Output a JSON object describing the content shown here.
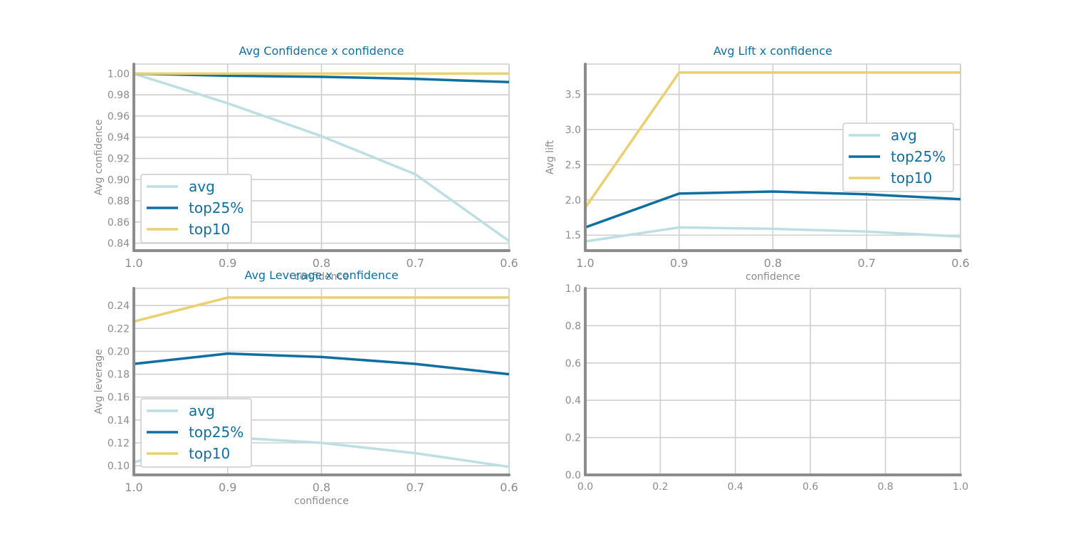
{
  "chart_data": [
    {
      "type": "line",
      "title": "Avg Confidence x confidence",
      "xlabel": "confidence",
      "ylabel": "Avg confidence",
      "x": [
        1.0,
        0.9,
        0.8,
        0.7,
        0.6
      ],
      "x_tick_labels": [
        "1.0",
        "0.9",
        "0.8",
        "0.7",
        "0.6"
      ],
      "xlim": [
        1.0,
        0.6
      ],
      "ylim": [
        0.833,
        1.009
      ],
      "y_ticks": [
        0.84,
        0.86,
        0.88,
        0.9,
        0.92,
        0.94,
        0.96,
        0.98,
        1.0
      ],
      "y_tick_labels": [
        "0.84",
        "0.86",
        "0.88",
        "0.90",
        "0.92",
        "0.94",
        "0.96",
        "0.98",
        "1.00"
      ],
      "grid": true,
      "legend_position": "lower-left",
      "series": [
        {
          "name": "avg",
          "color": "#bcdfe4",
          "values": [
            1.0,
            0.972,
            0.941,
            0.905,
            0.842
          ]
        },
        {
          "name": "top25%",
          "color": "#0e6fa0",
          "values": [
            1.0,
            0.998,
            0.997,
            0.995,
            0.992
          ]
        },
        {
          "name": "top10",
          "color": "#ead070",
          "values": [
            1.0,
            1.0,
            1.0,
            1.0,
            1.0
          ]
        }
      ]
    },
    {
      "type": "line",
      "title": "Avg Lift x confidence",
      "xlabel": "confidence",
      "ylabel": "Avg lift",
      "x": [
        1.0,
        0.9,
        0.8,
        0.7,
        0.6
      ],
      "x_tick_labels": [
        "1.0",
        "0.9",
        "0.8",
        "0.7",
        "0.6"
      ],
      "xlim": [
        1.0,
        0.6
      ],
      "ylim": [
        1.28,
        3.93
      ],
      "y_ticks": [
        1.5,
        2.0,
        2.5,
        3.0,
        3.5
      ],
      "y_tick_labels": [
        "1.5",
        "2.0",
        "2.5",
        "3.0",
        "3.5"
      ],
      "grid": true,
      "legend_position": "center-right",
      "series": [
        {
          "name": "avg",
          "color": "#bcdfe4",
          "values": [
            1.41,
            1.61,
            1.59,
            1.55,
            1.48
          ]
        },
        {
          "name": "top25%",
          "color": "#0e6fa0",
          "values": [
            1.61,
            2.09,
            2.12,
            2.08,
            2.01
          ]
        },
        {
          "name": "top10",
          "color": "#ead070",
          "values": [
            1.89,
            3.81,
            3.81,
            3.81,
            3.81
          ]
        }
      ]
    },
    {
      "type": "line",
      "title": "Avg Leverage x confidence",
      "xlabel": "confidence",
      "ylabel": "Avg leverage",
      "x": [
        1.0,
        0.9,
        0.8,
        0.7,
        0.6
      ],
      "x_tick_labels": [
        "1.0",
        "0.9",
        "0.8",
        "0.7",
        "0.6"
      ],
      "xlim": [
        1.0,
        0.6
      ],
      "ylim": [
        0.092,
        0.255
      ],
      "y_ticks": [
        0.1,
        0.12,
        0.14,
        0.16,
        0.18,
        0.2,
        0.22,
        0.24
      ],
      "y_tick_labels": [
        "0.10",
        "0.12",
        "0.14",
        "0.16",
        "0.18",
        "0.20",
        "0.22",
        "0.24"
      ],
      "grid": true,
      "legend_position": "lower-left",
      "series": [
        {
          "name": "avg",
          "color": "#bcdfe4",
          "values": [
            0.103,
            0.125,
            0.12,
            0.111,
            0.099
          ]
        },
        {
          "name": "top25%",
          "color": "#0e6fa0",
          "values": [
            0.189,
            0.198,
            0.195,
            0.189,
            0.18
          ]
        },
        {
          "name": "top10",
          "color": "#ead070",
          "values": [
            0.226,
            0.247,
            0.247,
            0.247,
            0.247
          ]
        }
      ]
    },
    {
      "type": "line",
      "title": "",
      "xlabel": "",
      "ylabel": "",
      "x": [],
      "xlim": [
        0.0,
        1.0
      ],
      "ylim": [
        0.0,
        1.0
      ],
      "x_ticks": [
        0.0,
        0.2,
        0.4,
        0.6,
        0.8,
        1.0
      ],
      "x_tick_labels": [
        "0.0",
        "0.2",
        "0.4",
        "0.6",
        "0.8",
        "1.0"
      ],
      "y_ticks": [
        0.0,
        0.2,
        0.4,
        0.6,
        0.8,
        1.0
      ],
      "y_tick_labels": [
        "0.0",
        "0.2",
        "0.4",
        "0.6",
        "0.8",
        "1.0"
      ],
      "grid": true,
      "series": []
    }
  ]
}
